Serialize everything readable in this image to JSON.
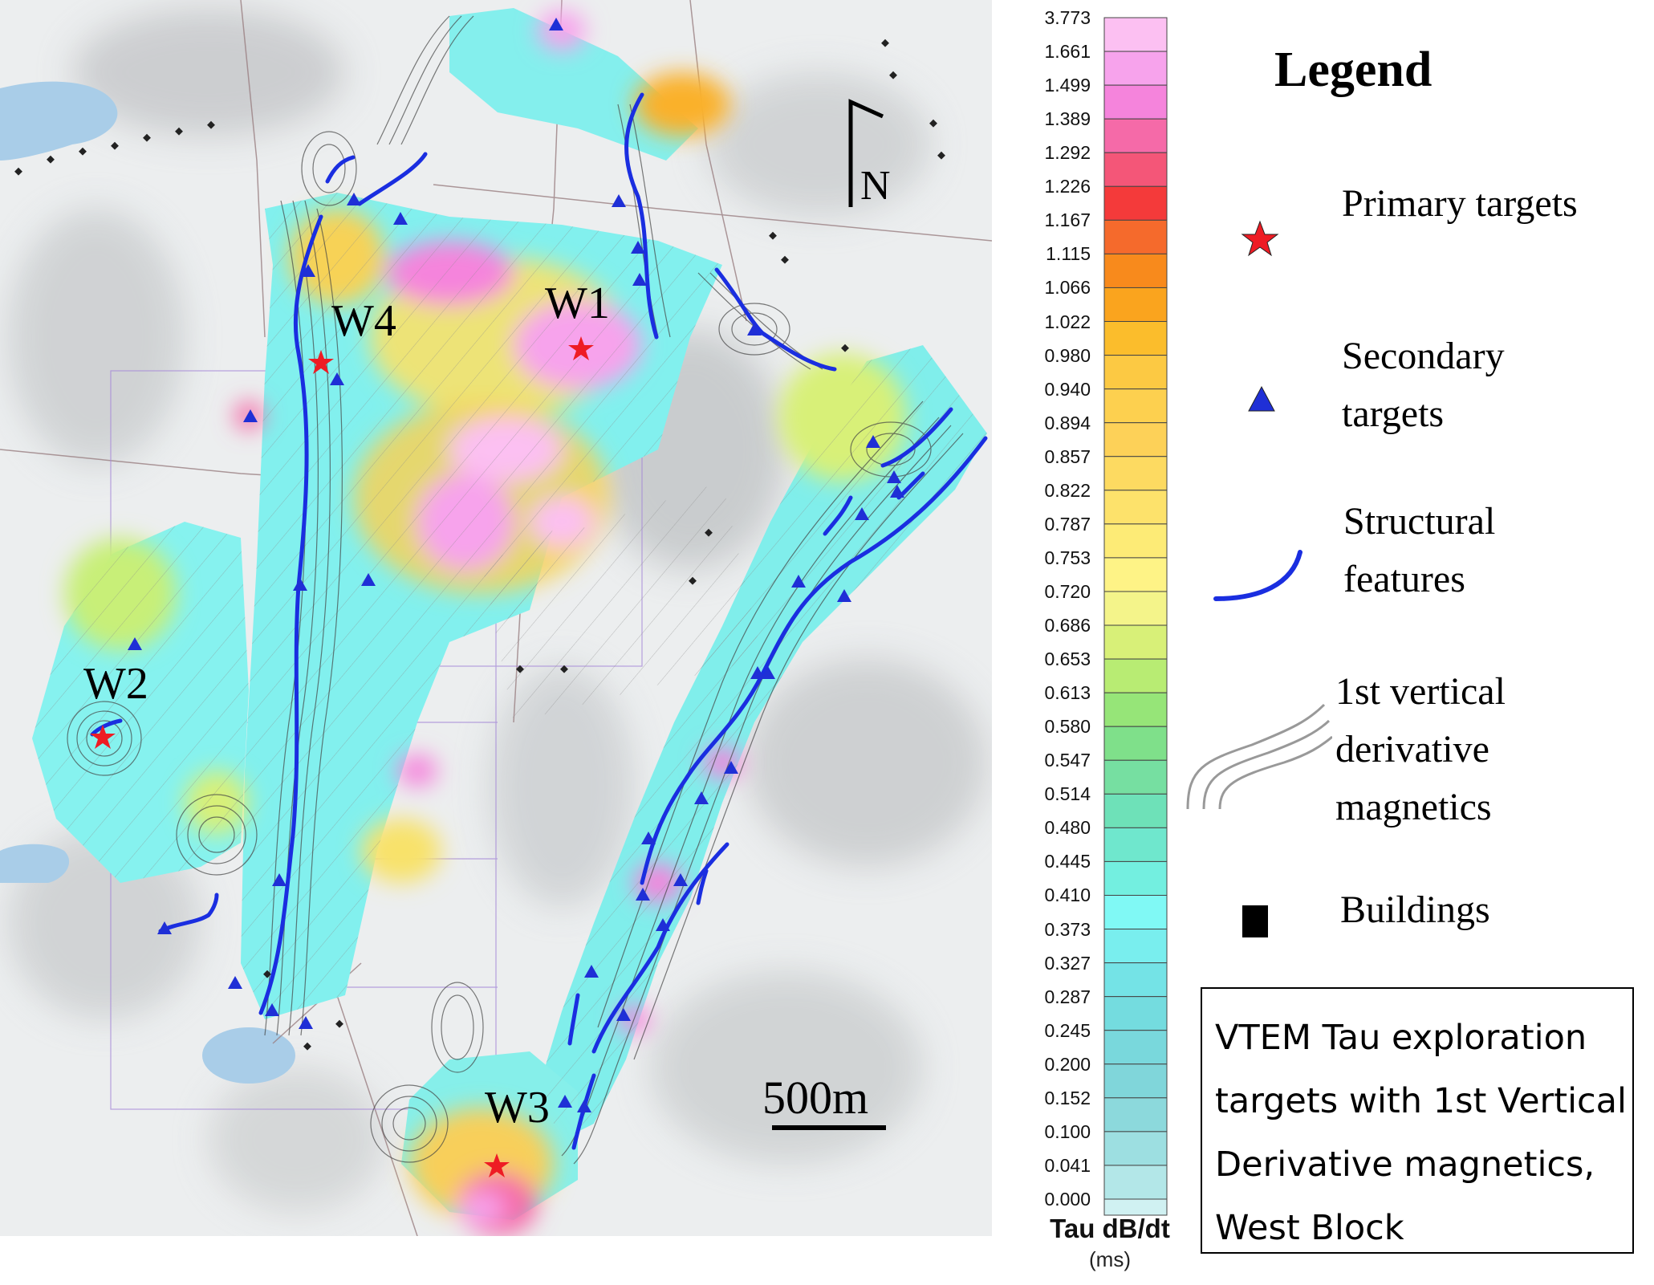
{
  "map": {
    "target_labels": [
      "W1",
      "W2",
      "W3",
      "W4"
    ],
    "north_label": "N",
    "scale_label": "500m"
  },
  "colorbar": {
    "ticks": [
      "3.773",
      "1.661",
      "1.499",
      "1.389",
      "1.292",
      "1.226",
      "1.167",
      "1.115",
      "1.066",
      "1.022",
      "0.980",
      "0.940",
      "0.894",
      "0.857",
      "0.822",
      "0.787",
      "0.753",
      "0.720",
      "0.686",
      "0.653",
      "0.613",
      "0.580",
      "0.547",
      "0.514",
      "0.480",
      "0.445",
      "0.410",
      "0.373",
      "0.327",
      "0.287",
      "0.245",
      "0.200",
      "0.152",
      "0.100",
      "0.041",
      "0.000"
    ],
    "colors": [
      "#fcc0f2",
      "#f7a3ec",
      "#f584dc",
      "#f56aa8",
      "#f45678",
      "#f43a3a",
      "#f56a2c",
      "#f88a1c",
      "#faa41e",
      "#fbbd2c",
      "#fcc943",
      "#fdd04f",
      "#fdd158",
      "#fdda61",
      "#fde26b",
      "#fdeb76",
      "#fef386",
      "#f4f48a",
      "#d8f078",
      "#b8ec73",
      "#96e578",
      "#7fe08a",
      "#76dfa1",
      "#6ee1b8",
      "#6fe7cd",
      "#73efe0",
      "#80f9f5",
      "#79eeee",
      "#74e3e6",
      "#74dcdf",
      "#79d8dc",
      "#80d6da",
      "#8cd9dc",
      "#9ddfe1",
      "#b3e7e8",
      "#d0f1f2"
    ],
    "title": "Tau dB/dt",
    "unit": "(ms)"
  },
  "legend": {
    "title": "Legend",
    "primary_targets": "Primary targets",
    "secondary_targets": "Secondary targets",
    "structural_features": "Structural features",
    "vertical_derivative": "1st vertical derivative magnetics",
    "buildings": "Buildings"
  },
  "caption": {
    "text": "VTEM Tau exploration targets with 1st Vertical Derivative magnetics, West Block"
  },
  "colors": {
    "primary_star": "#ee1c24",
    "secondary_triangle": "#1f2fd6",
    "structural_line": "#1a2ee0"
  }
}
